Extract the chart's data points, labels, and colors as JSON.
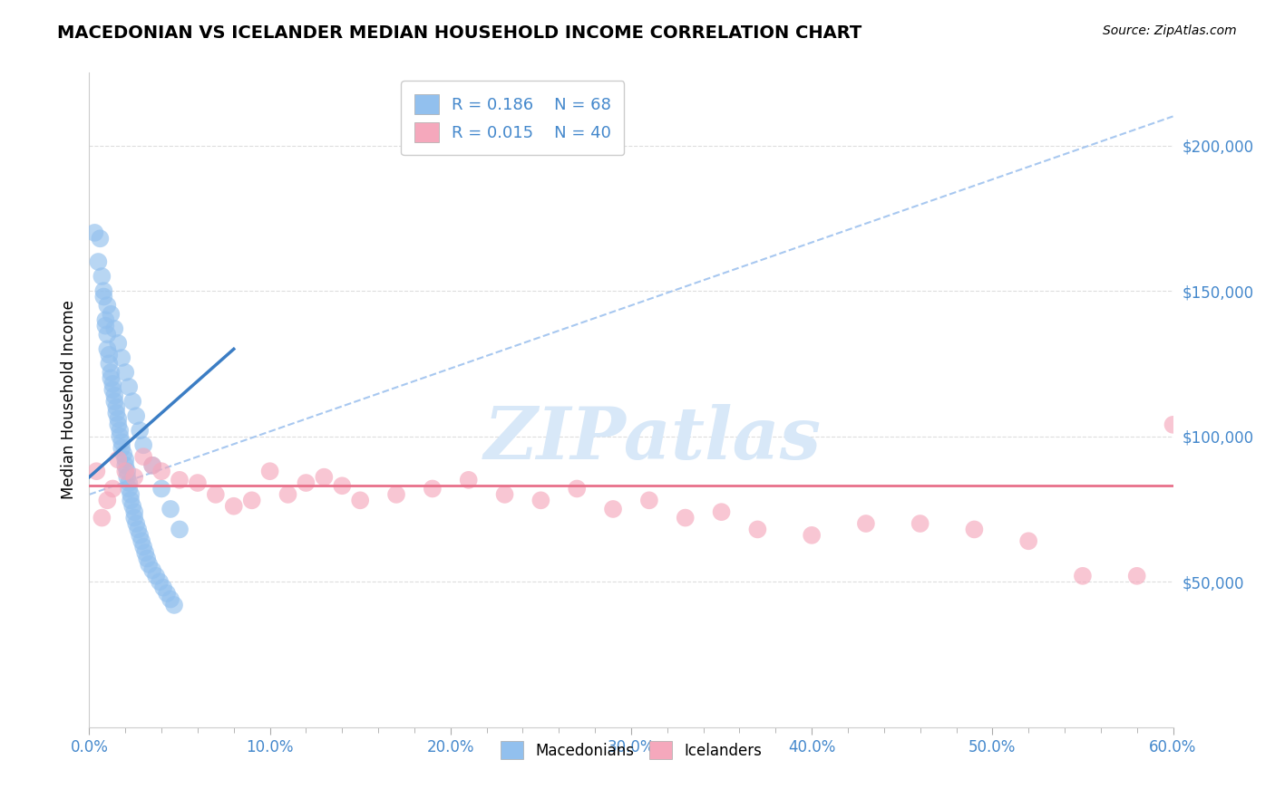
{
  "title": "MACEDONIAN VS ICELANDER MEDIAN HOUSEHOLD INCOME CORRELATION CHART",
  "source": "Source: ZipAtlas.com",
  "ylabel": "Median Household Income",
  "R_macedonian": 0.186,
  "N_macedonian": 68,
  "R_icelander": 0.015,
  "N_icelander": 40,
  "macedonian_color": "#92C0EE",
  "icelander_color": "#F5A8BC",
  "regression_blue_color": "#3B7DC4",
  "regression_pink_color": "#E8708A",
  "dashed_line_color": "#A8C8F0",
  "watermark_color": "#D8E8F8",
  "background_color": "#FFFFFF",
  "grid_color": "#DDDDDD",
  "macedonians_x": [
    0.3,
    0.5,
    0.6,
    0.7,
    0.8,
    0.8,
    0.9,
    0.9,
    1.0,
    1.0,
    1.1,
    1.1,
    1.2,
    1.2,
    1.3,
    1.3,
    1.4,
    1.4,
    1.5,
    1.5,
    1.6,
    1.6,
    1.7,
    1.7,
    1.8,
    1.8,
    1.9,
    2.0,
    2.0,
    2.1,
    2.1,
    2.2,
    2.2,
    2.3,
    2.3,
    2.4,
    2.5,
    2.5,
    2.6,
    2.7,
    2.8,
    2.9,
    3.0,
    3.1,
    3.2,
    3.3,
    3.5,
    3.7,
    3.9,
    4.1,
    4.3,
    4.5,
    4.7,
    1.0,
    1.2,
    1.4,
    1.6,
    1.8,
    2.0,
    2.2,
    2.4,
    2.6,
    2.8,
    3.0,
    3.5,
    4.0,
    4.5,
    5.0
  ],
  "macedonians_y": [
    170000,
    160000,
    168000,
    155000,
    150000,
    148000,
    140000,
    138000,
    135000,
    130000,
    128000,
    125000,
    122000,
    120000,
    118000,
    116000,
    114000,
    112000,
    110000,
    108000,
    106000,
    104000,
    102000,
    100000,
    98000,
    96000,
    94000,
    92000,
    90000,
    88000,
    86000,
    84000,
    82000,
    80000,
    78000,
    76000,
    74000,
    72000,
    70000,
    68000,
    66000,
    64000,
    62000,
    60000,
    58000,
    56000,
    54000,
    52000,
    50000,
    48000,
    46000,
    44000,
    42000,
    145000,
    142000,
    137000,
    132000,
    127000,
    122000,
    117000,
    112000,
    107000,
    102000,
    97000,
    90000,
    82000,
    75000,
    68000
  ],
  "icelanders_x": [
    0.4,
    0.7,
    1.0,
    1.3,
    1.6,
    2.0,
    2.5,
    3.0,
    3.5,
    4.0,
    5.0,
    6.0,
    7.0,
    8.0,
    9.0,
    10.0,
    11.0,
    12.0,
    13.0,
    14.0,
    15.0,
    17.0,
    19.0,
    21.0,
    23.0,
    25.0,
    27.0,
    29.0,
    31.0,
    33.0,
    35.0,
    37.0,
    40.0,
    43.0,
    46.0,
    49.0,
    52.0,
    55.0,
    58.0,
    60.0
  ],
  "icelanders_y": [
    88000,
    72000,
    78000,
    82000,
    92000,
    88000,
    86000,
    93000,
    90000,
    88000,
    85000,
    84000,
    80000,
    76000,
    78000,
    88000,
    80000,
    84000,
    86000,
    83000,
    78000,
    80000,
    82000,
    85000,
    80000,
    78000,
    82000,
    75000,
    78000,
    72000,
    74000,
    68000,
    66000,
    70000,
    70000,
    68000,
    64000,
    52000,
    52000,
    104000
  ],
  "xlim": [
    0.0,
    60.0
  ],
  "ylim": [
    0,
    225000
  ],
  "xtick_vals": [
    0,
    10,
    20,
    30,
    40,
    50,
    60
  ],
  "xtick_labels": [
    "0.0%",
    "10.0%",
    "20.0%",
    "30.0%",
    "40.0%",
    "50.0%",
    "60.0%"
  ],
  "ytick_vals": [
    50000,
    100000,
    150000,
    200000
  ],
  "ytick_labels": [
    "$50,000",
    "$100,000",
    "$150,000",
    "$200,000"
  ]
}
